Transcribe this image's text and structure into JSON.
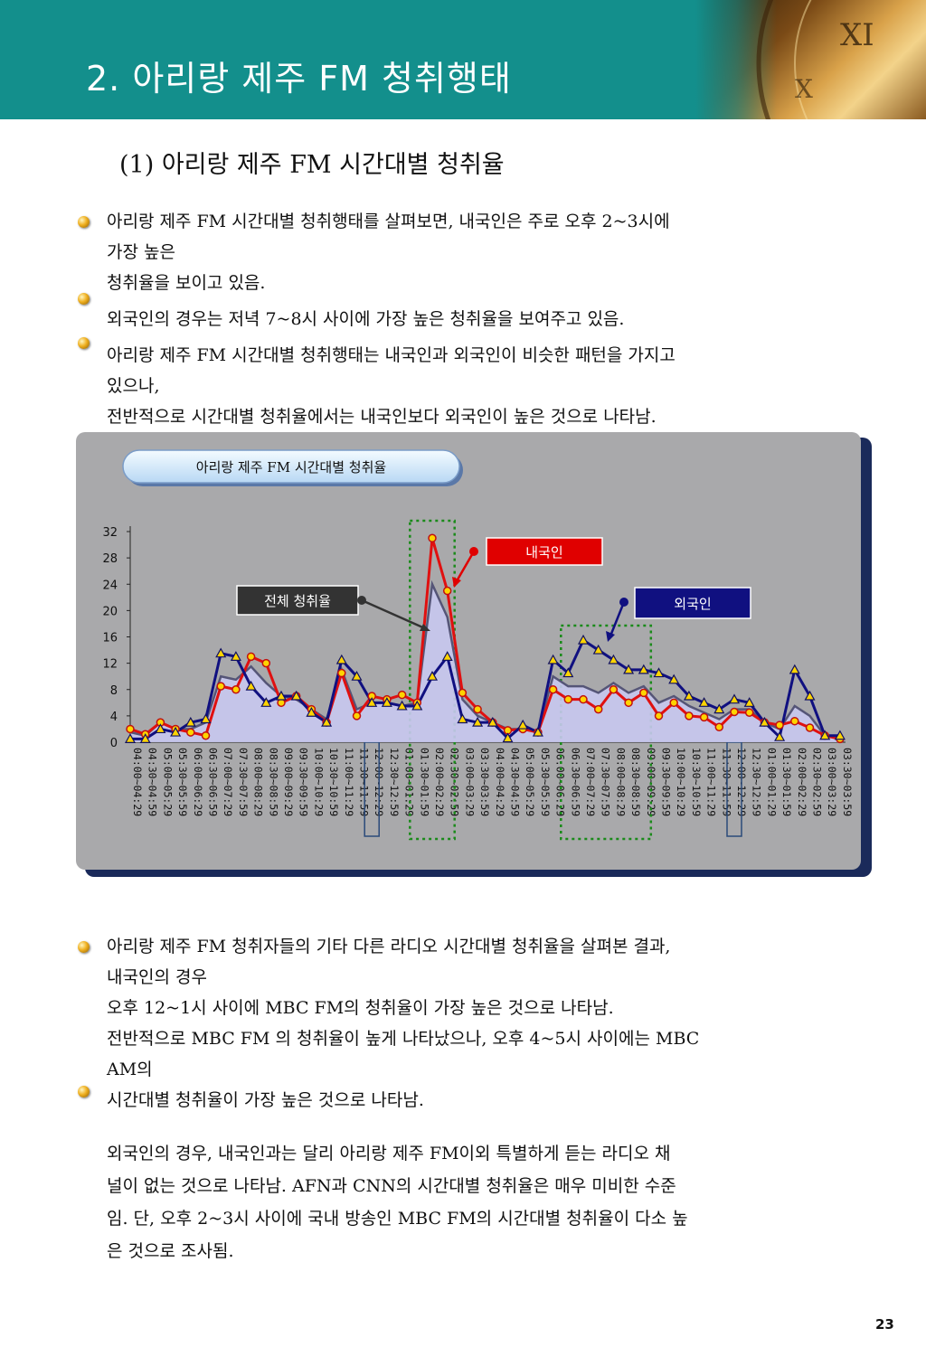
{
  "header": {
    "title": "2. 아리랑 제주 FM 청취행태"
  },
  "section": {
    "subtitle": "(1) 아리랑 제주 FM 시간대별 청취율"
  },
  "block1": {
    "lines": [
      "아리랑 제주 FM 시간대별 청취행태를 살펴보면, 내국인은 주로 오후 2~3시에",
      "가장 높은",
      "청취율을 보이고 있음.",
      "외국인의 경우는 저녁 7~8시 사이에 가장 높은 청취율을 보여주고 있음.",
      "아리랑 제주 FM 시간대별 청취행태는 내국인과 외국인이 비슷한 패턴을 가지고",
      "있으나,",
      "전반적으로 시간대별 청취율에서는 내국인보다 외국인이 높은 것으로 나타남."
    ]
  },
  "chart_data": {
    "type": "line",
    "title": "아리랑 제주 FM 시간대별 청취율",
    "ylim": [
      0,
      32
    ],
    "yticks": [
      "32",
      "28",
      "24",
      "20",
      "16",
      "12",
      "8",
      "4",
      "0"
    ],
    "categories": [
      "04:00~04:29",
      "04:30~04:59",
      "05:00~05:29",
      "05:30~05:59",
      "06:00~06:29",
      "06:30~06:59",
      "07:00~07:29",
      "07:30~07:59",
      "08:00~08:29",
      "08:30~08:59",
      "09:00~09:29",
      "09:30~09:59",
      "10:00~10:29",
      "10:30~10:59",
      "11:00~11:29",
      "11:30~11:59",
      "12:00~12:29",
      "12:30~12:59",
      "01:00~01:29",
      "01:30~01:59",
      "02:00~02:29",
      "02:30~02:59",
      "03:00~03:29",
      "03:30~03:59",
      "04:00~04:29",
      "04:30~04:59",
      "05:00~05:29",
      "05:30~05:59",
      "06:00~06:29",
      "06:30~06:59",
      "07:00~07:29",
      "07:30~07:59",
      "08:00~08:29",
      "08:30~08:59",
      "09:00~09:29",
      "09:30~09:59",
      "10:00~10:29",
      "10:30~10:59",
      "11:00~11:29",
      "11:30~11:59",
      "12:00~12:29",
      "12:30~12:59",
      "01:00~01:29",
      "01:30~01:59",
      "02:00~02:29",
      "02:30~02:59",
      "03:00~03:29",
      "03:30~03:59"
    ],
    "series": [
      {
        "name": "전체 청취율",
        "color": "#555577",
        "fill": "#c8c8f0",
        "values": [
          1.5,
          1,
          3,
          2,
          2,
          3,
          10,
          9.5,
          11.5,
          9,
          7,
          6.5,
          5,
          3.5,
          11,
          5,
          6,
          6,
          5.5,
          6,
          24,
          19,
          6.5,
          4,
          3,
          2,
          2,
          1.5,
          10,
          8.5,
          8.5,
          7.5,
          9,
          7.5,
          8.5,
          6,
          7,
          5.5,
          4.5,
          3.5,
          5,
          5,
          3,
          2,
          5.5,
          4,
          1,
          1
        ]
      },
      {
        "name": "내국인",
        "color": "#e01010",
        "values": [
          2,
          1.2,
          3,
          2,
          1.5,
          1,
          8.5,
          8,
          13,
          12,
          6,
          7,
          5,
          3,
          10.5,
          4,
          7,
          6.5,
          7.2,
          6,
          31,
          23,
          7.5,
          5,
          3,
          1.8,
          2,
          1.5,
          8,
          6.5,
          6.5,
          5,
          8,
          6,
          7.5,
          4,
          6,
          4,
          3.8,
          2.3,
          4.6,
          4.5,
          3,
          2.6,
          3.2,
          2.2,
          1,
          0.5
        ]
      },
      {
        "name": "외국인",
        "color": "#101080",
        "values": [
          0.5,
          0.5,
          2,
          1.5,
          3,
          3.5,
          13.5,
          13,
          8.5,
          6,
          7,
          7,
          4.5,
          3,
          12.5,
          10,
          6,
          6,
          5.5,
          5.5,
          10,
          13,
          3.5,
          3,
          3,
          0.6,
          2.6,
          1.5,
          12.5,
          10.5,
          15.5,
          14,
          12.5,
          11,
          11,
          10.5,
          9.5,
          7,
          6,
          5,
          6.5,
          6,
          3,
          0.8,
          11,
          7,
          1,
          1
        ]
      }
    ],
    "labels": {
      "all": "전체 청취율",
      "domestic": "내국인",
      "foreign": "외국인"
    }
  },
  "block2": {
    "lines": [
      "아리랑 제주 FM 청취자들의 기타 다른 라디오 시간대별 청취율을 살펴본 결과,",
      "내국인의 경우",
      "오후 12~1시 사이에 MBC FM의 청취율이 가장 높은 것으로 나타남.",
      "전반적으로 MBC FM 의 청취율이 높게 나타났으나, 오후 4~5시 사이에는 MBC",
      "AM의",
      "시간대별 청취율이 가장 높은 것으로 나타남."
    ]
  },
  "block3": {
    "lines": [
      "외국인의 경우, 내국인과는 달리 아리랑 제주 FM이외 특별하게 듣는 라디오 채",
      "널이 없는 것으로 나타남. AFN과 CNN의 시간대별 청취율은 매우 미비한 수준",
      "임. 단, 오후 2~3시 사이에 국내 방송인  MBC FM의 시간대별 청취율이 다소 높",
      "은 것으로 조사됨."
    ]
  },
  "footer": {
    "page": "23"
  }
}
